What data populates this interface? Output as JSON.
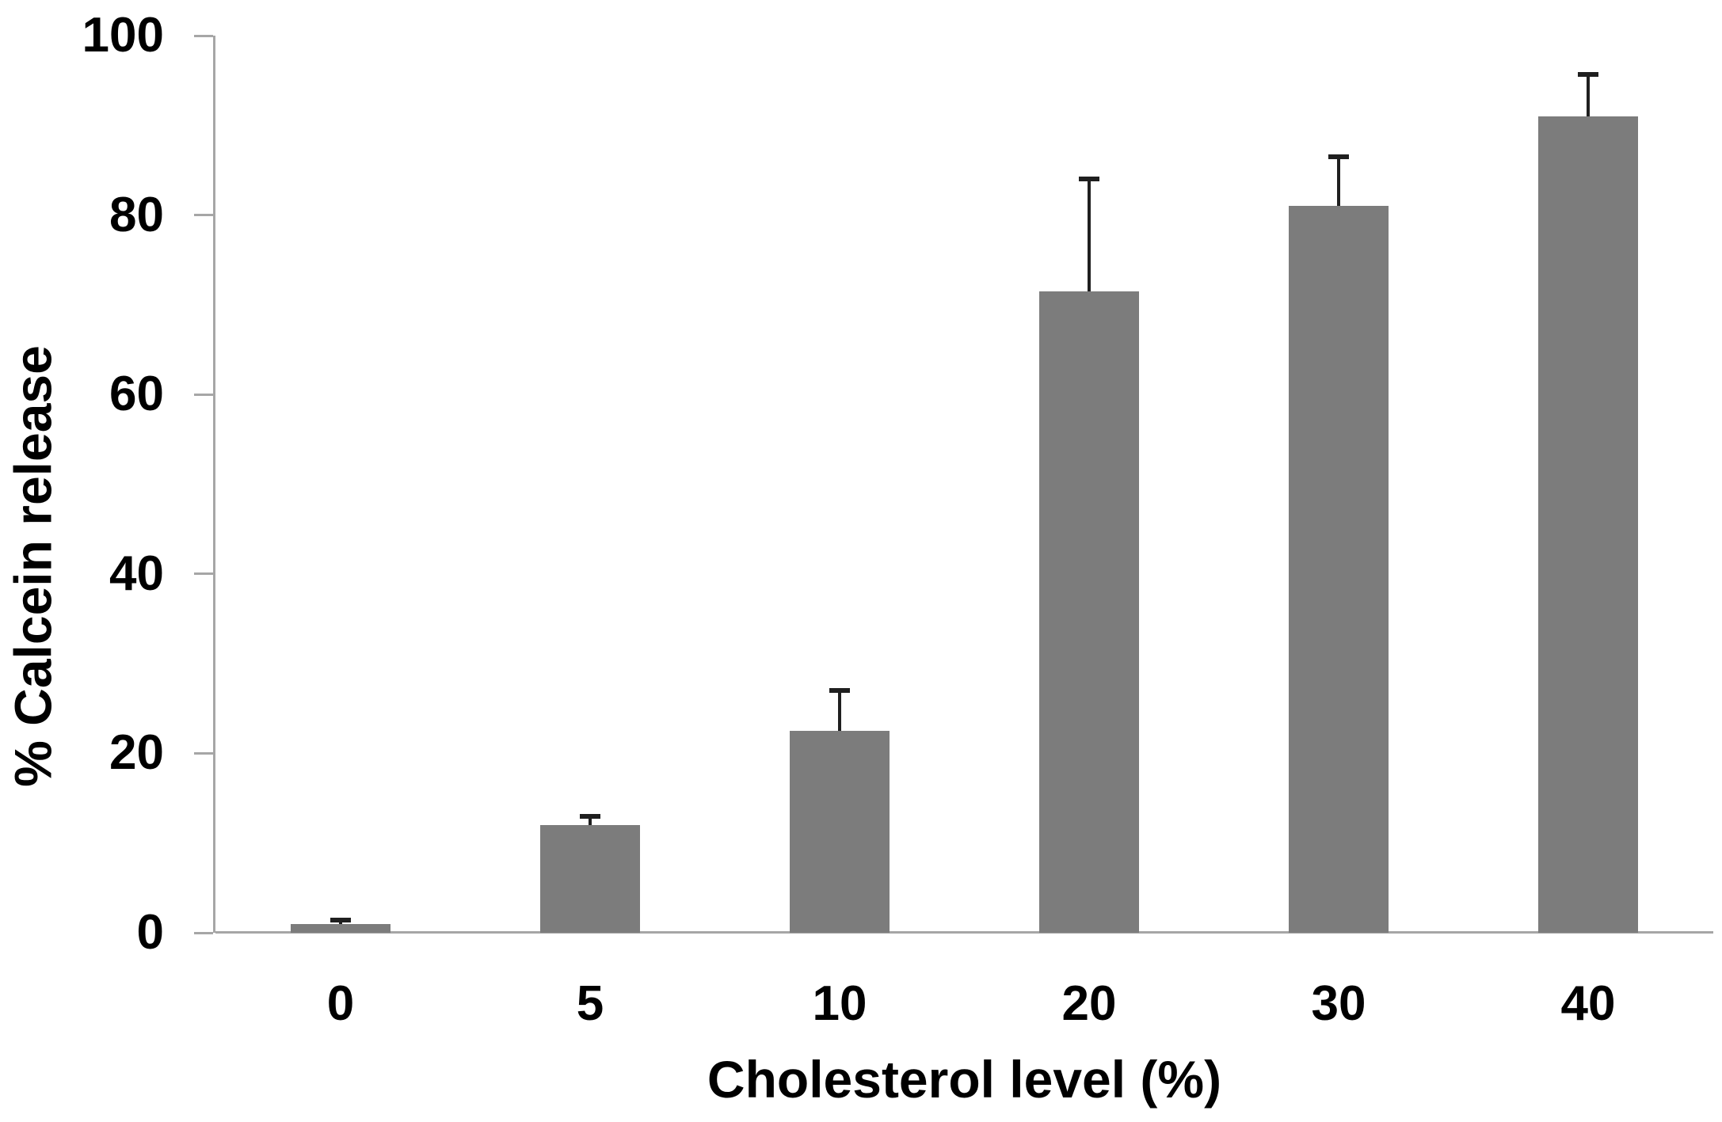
{
  "chart_data": {
    "type": "bar",
    "title": "",
    "xlabel": "Cholesterol level (%)",
    "ylabel": "% Calcein release",
    "categories": [
      "0",
      "5",
      "10",
      "20",
      "30",
      "40"
    ],
    "values": [
      1,
      12,
      22.5,
      71.5,
      81,
      91
    ],
    "errors_plus": [
      0.4,
      1,
      4.5,
      12.5,
      5.5,
      4.7
    ],
    "yticks": [
      0,
      20,
      40,
      60,
      80,
      100
    ],
    "ylim": [
      0,
      100
    ],
    "grid": "off",
    "legend": "none",
    "bar_color": "#7c7c7c",
    "error_color": "#1f1f1f",
    "axis_color": "#a6a6a6",
    "text_color": "#000000"
  }
}
